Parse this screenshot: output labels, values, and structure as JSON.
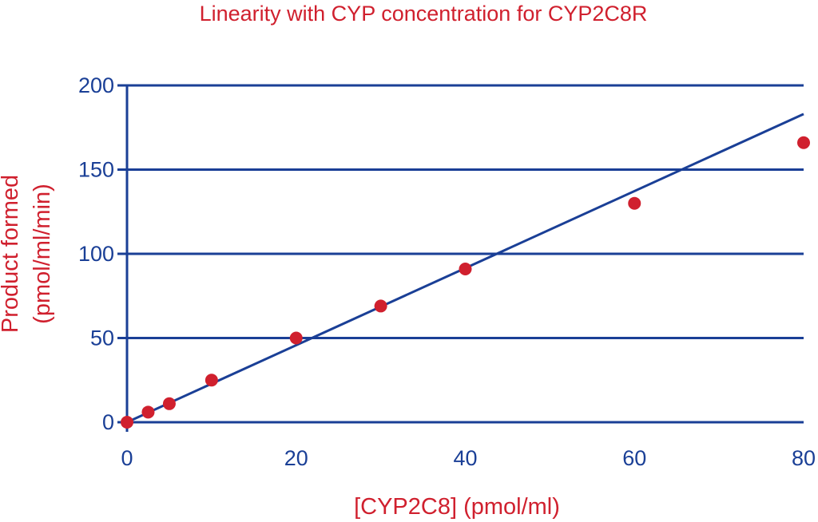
{
  "colors": {
    "title": "#d0202e",
    "axis_label": "#d0202e",
    "axis": "#1a3f96",
    "grid": "#1a3f96",
    "tick_label": "#1a3f96",
    "points": "#d0202e",
    "fit_line": "#1a3f96"
  },
  "chart_data": {
    "type": "scatter",
    "title": "Linearity with CYP concentration for CYP2C8R",
    "xlabel": "[CYP2C8] (pmol/ml)",
    "ylabel_line1": "Product formed",
    "ylabel_line2": "(pmol/ml/min)",
    "xlim": [
      0,
      80
    ],
    "ylim": [
      0,
      200
    ],
    "x_ticks": [
      0,
      20,
      40,
      60,
      80
    ],
    "y_ticks": [
      0,
      50,
      100,
      150,
      200
    ],
    "grid": "horizontal",
    "points": [
      {
        "x": 0,
        "y": 0
      },
      {
        "x": 2.5,
        "y": 6
      },
      {
        "x": 5,
        "y": 11
      },
      {
        "x": 10,
        "y": 25
      },
      {
        "x": 20,
        "y": 50
      },
      {
        "x": 30,
        "y": 69
      },
      {
        "x": 40,
        "y": 91
      },
      {
        "x": 60,
        "y": 130
      },
      {
        "x": 80,
        "y": 166
      }
    ],
    "fit_line": {
      "x": [
        0,
        80
      ],
      "y": [
        0,
        183
      ]
    }
  }
}
